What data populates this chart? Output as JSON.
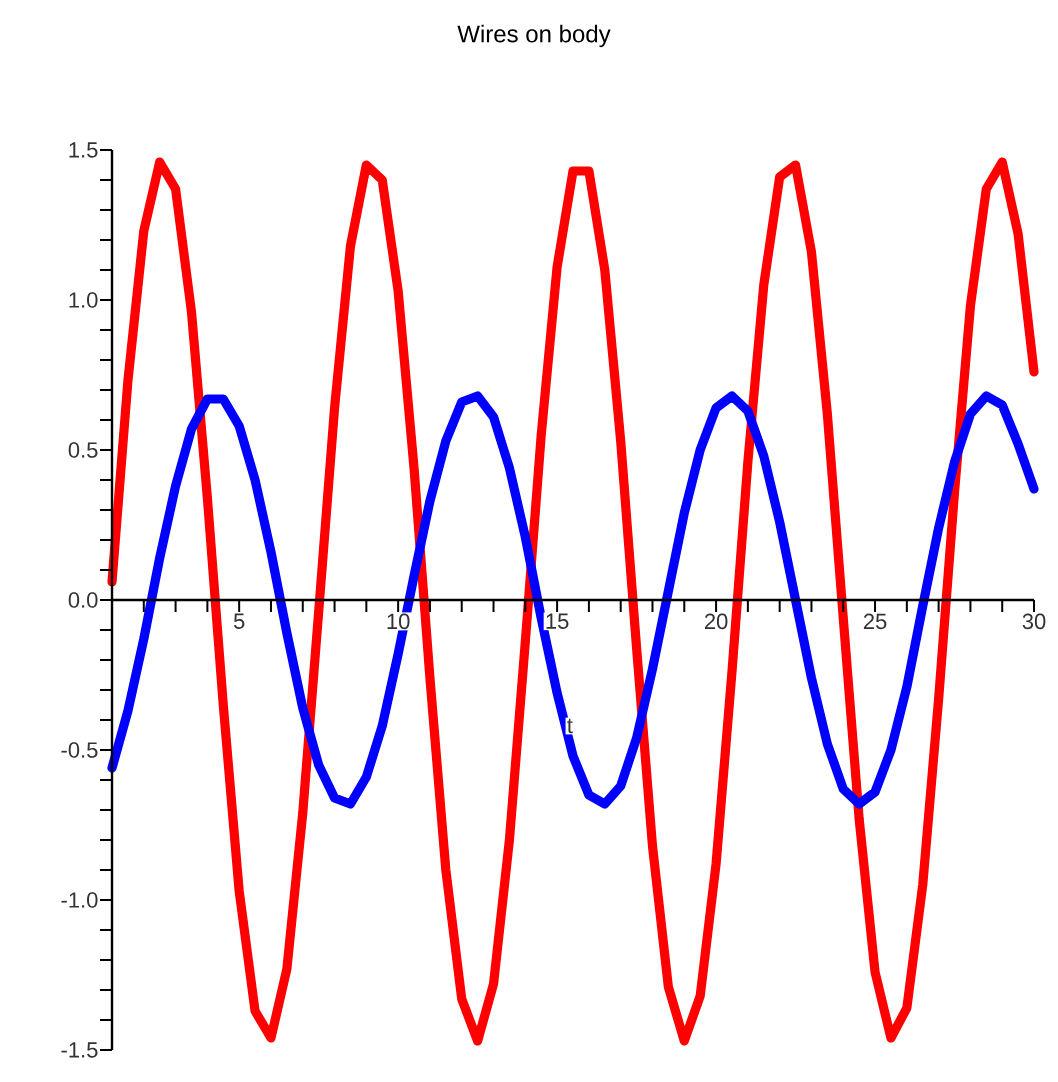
{
  "chart_data": {
    "type": "line",
    "title": "Wires on body",
    "xlabel": "t",
    "xlim": [
      1,
      30
    ],
    "ylim": [
      -1.5,
      1.5
    ],
    "xticks": [
      {
        "value": 2,
        "label": null
      },
      {
        "value": 3,
        "label": null
      },
      {
        "value": 4,
        "label": null
      },
      5,
      {
        "value": 6,
        "label": null
      },
      {
        "value": 7,
        "label": null
      },
      {
        "value": 8,
        "label": null
      },
      {
        "value": 9,
        "label": null
      },
      10,
      {
        "value": 11,
        "label": null
      },
      {
        "value": 12,
        "label": null
      },
      {
        "value": 13,
        "label": null
      },
      {
        "value": 14,
        "label": null
      },
      15,
      {
        "value": 16,
        "label": null
      },
      {
        "value": 17,
        "label": null
      },
      {
        "value": 18,
        "label": null
      },
      {
        "value": 19,
        "label": null
      },
      20,
      {
        "value": 21,
        "label": null
      },
      {
        "value": 22,
        "label": null
      },
      {
        "value": 23,
        "label": null
      },
      {
        "value": 24,
        "label": null
      },
      25,
      {
        "value": 26,
        "label": null
      },
      {
        "value": 27,
        "label": null
      },
      {
        "value": 28,
        "label": null
      },
      {
        "value": 29,
        "label": null
      },
      30
    ],
    "yticks": [
      {
        "value": -1.5,
        "label": "-1.5"
      },
      {
        "value": -1.4,
        "label": null
      },
      {
        "value": -1.3,
        "label": null
      },
      {
        "value": -1.2,
        "label": null
      },
      {
        "value": -1.1,
        "label": null
      },
      {
        "value": -1.0,
        "label": "-1.0"
      },
      {
        "value": -0.9,
        "label": null
      },
      {
        "value": -0.8,
        "label": null
      },
      {
        "value": -0.7,
        "label": null
      },
      {
        "value": -0.6,
        "label": null
      },
      {
        "value": -0.5,
        "label": "-0.5"
      },
      {
        "value": -0.4,
        "label": null
      },
      {
        "value": -0.3,
        "label": null
      },
      {
        "value": -0.2,
        "label": null
      },
      {
        "value": -0.1,
        "label": null
      },
      {
        "value": 0,
        "label": "0.0"
      },
      {
        "value": 0.1,
        "label": null
      },
      {
        "value": 0.2,
        "label": null
      },
      {
        "value": 0.3,
        "label": null
      },
      {
        "value": 0.4,
        "label": null
      },
      {
        "value": 0.5,
        "label": "0.5"
      },
      {
        "value": 0.6,
        "label": null
      },
      {
        "value": 0.7,
        "label": null
      },
      {
        "value": 0.8,
        "label": null
      },
      {
        "value": 0.9,
        "label": null
      },
      {
        "value": 1.0,
        "label": "1.0"
      },
      {
        "value": 1.1,
        "label": null
      },
      {
        "value": 1.2,
        "label": null
      },
      {
        "value": 1.3,
        "label": null
      },
      {
        "value": 1.4,
        "label": null
      },
      {
        "value": 1.5,
        "label": "1.5"
      }
    ],
    "grid": false,
    "marker": "none",
    "line_style": "solid",
    "x": [
      1,
      1.5,
      2,
      2.5,
      3,
      3.5,
      4,
      4.5,
      5,
      5.5,
      6,
      6.5,
      7,
      7.5,
      8,
      8.5,
      9,
      9.5,
      10,
      10.5,
      11,
      11.5,
      12,
      12.5,
      13,
      13.5,
      14,
      14.5,
      15,
      15.5,
      16,
      16.5,
      17,
      17.5,
      18,
      18.5,
      19,
      19.5,
      20,
      20.5,
      21,
      21.5,
      22,
      22.5,
      23,
      23.5,
      24,
      24.5,
      25,
      25.5,
      26,
      26.5,
      27,
      27.5,
      28,
      28.5,
      29,
      29.5,
      30
    ],
    "series": [
      {
        "color": "#ff0000",
        "values": [
          0.06,
          0.73,
          1.23,
          1.46,
          1.37,
          0.96,
          0.34,
          -0.35,
          -0.97,
          -1.37,
          -1.46,
          -1.23,
          -0.71,
          -0.04,
          0.64,
          1.18,
          1.45,
          1.4,
          1.03,
          0.44,
          -0.26,
          -0.9,
          -1.33,
          -1.47,
          -1.28,
          -0.8,
          -0.14,
          0.55,
          1.11,
          1.43,
          1.43,
          1.1,
          0.53,
          -0.16,
          -0.82,
          -1.29,
          -1.47,
          -1.32,
          -0.88,
          -0.24,
          0.46,
          1.05,
          1.41,
          1.45,
          1.16,
          0.62,
          -0.06,
          -0.73,
          -1.24,
          -1.46,
          -1.36,
          -0.95,
          -0.33,
          0.36,
          0.98,
          1.37,
          1.46,
          1.22,
          0.76
        ]
      },
      {
        "color": "#0000ff",
        "values": [
          -0.56,
          -0.37,
          -0.13,
          0.14,
          0.38,
          0.57,
          0.67,
          0.67,
          0.58,
          0.4,
          0.16,
          -0.11,
          -0.36,
          -0.55,
          -0.66,
          -0.68,
          -0.59,
          -0.42,
          -0.18,
          0.08,
          0.33,
          0.53,
          0.66,
          0.68,
          0.61,
          0.44,
          0.21,
          -0.06,
          -0.31,
          -0.52,
          -0.65,
          -0.68,
          -0.62,
          -0.46,
          -0.23,
          0.03,
          0.29,
          0.5,
          0.64,
          0.68,
          0.63,
          0.48,
          0.26,
          0.0,
          -0.26,
          -0.48,
          -0.63,
          -0.68,
          -0.64,
          -0.5,
          -0.29,
          -0.02,
          0.24,
          0.46,
          0.62,
          0.68,
          0.65,
          0.52,
          0.37
        ]
      }
    ]
  }
}
